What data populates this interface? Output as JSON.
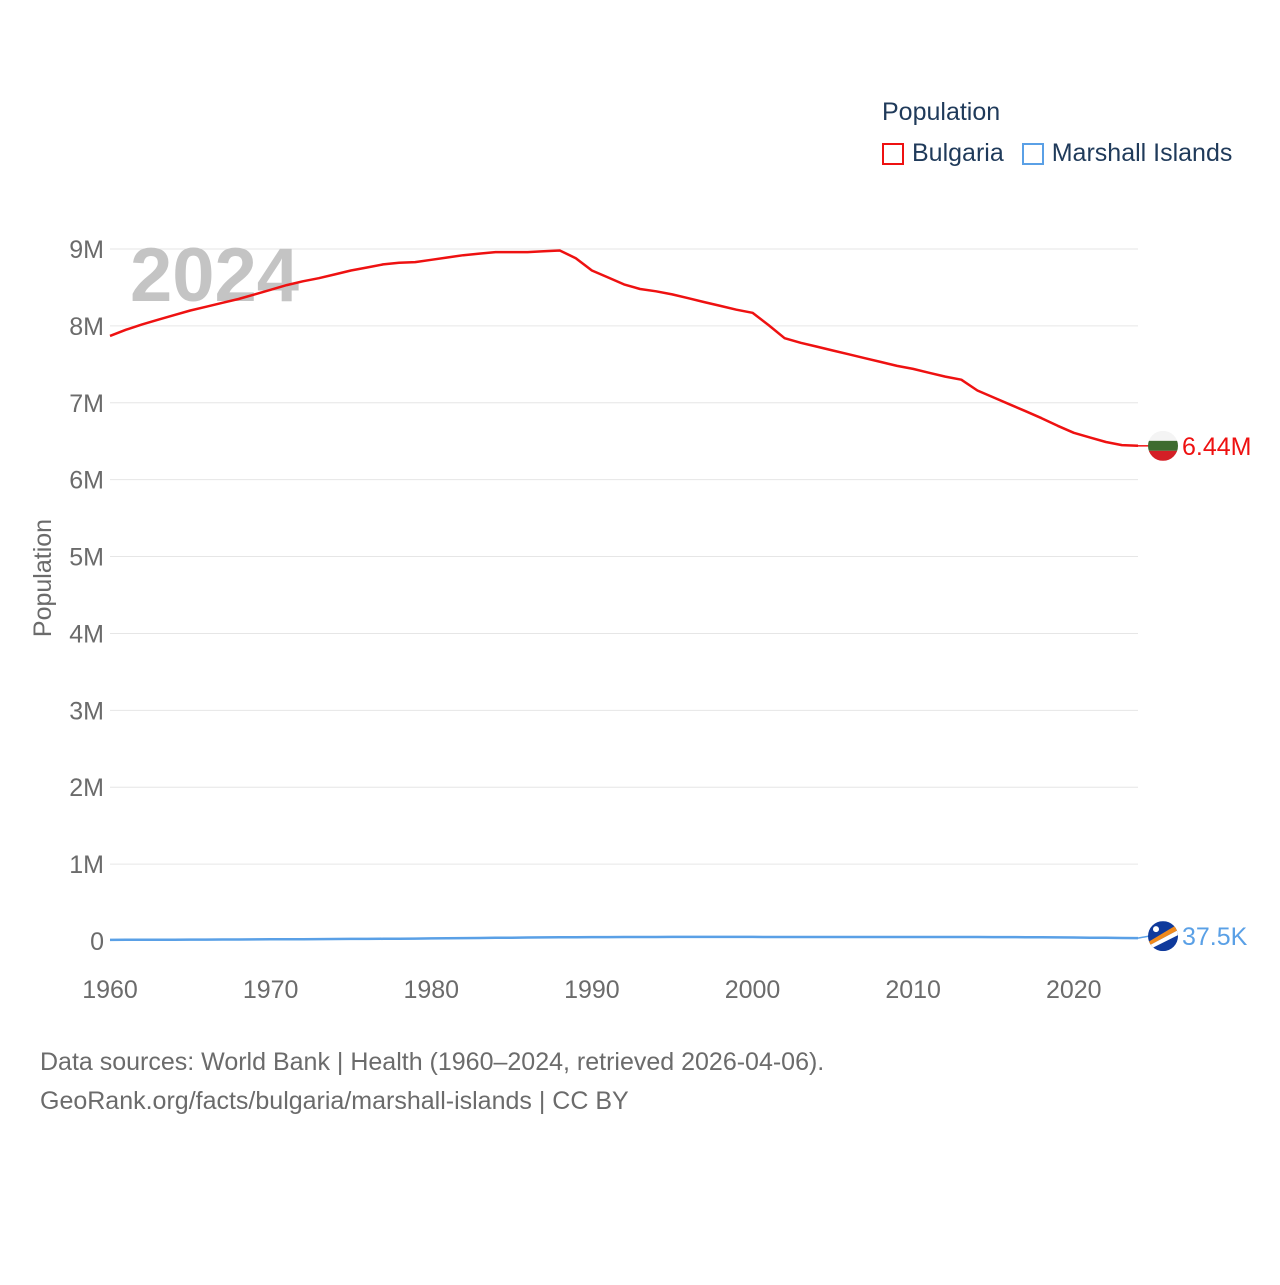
{
  "colors": {
    "bulgaria": "#ee1111",
    "marshall": "#5aa0e6",
    "grid": "#e6e6e6",
    "tick": "#6b6b6b",
    "year_watermark": "#c4c4c4",
    "legend_text": "#1f3a5a"
  },
  "legend": {
    "title": "Population",
    "items": [
      {
        "label": "Bulgaria",
        "color": "#ee1111"
      },
      {
        "label": "Marshall Islands",
        "color": "#5aa0e6"
      }
    ]
  },
  "year_watermark": "2024",
  "end_labels": {
    "bulgaria": "6.44M",
    "marshall": "37.5K"
  },
  "flags": {
    "bulgaria": "bulgaria-flag-icon",
    "marshall": "marshall-islands-flag-icon"
  },
  "footer": {
    "line1": "Data sources: World Bank | Health (1960–2024, retrieved 2026-04-06).",
    "line2": "GeoRank.org/facts/bulgaria/marshall-islands | CC BY"
  },
  "chart_data": {
    "type": "line",
    "title": "",
    "xlabel": "",
    "ylabel": "Population",
    "xlim": [
      1960,
      2024
    ],
    "ylim": [
      0,
      9000000
    ],
    "x_ticks": [
      1960,
      1970,
      1980,
      1990,
      2000,
      2010,
      2020
    ],
    "x_tick_labels": [
      "1960",
      "1970",
      "1980",
      "1990",
      "2000",
      "2010",
      "2020"
    ],
    "y_ticks": [
      0,
      1000000,
      2000000,
      3000000,
      4000000,
      5000000,
      6000000,
      7000000,
      8000000,
      9000000
    ],
    "y_tick_labels": [
      "0",
      "1M",
      "2M",
      "3M",
      "4M",
      "5M",
      "6M",
      "7M",
      "8M",
      "9M"
    ],
    "grid": true,
    "legend_position": "top-right",
    "x": [
      1960,
      1961,
      1962,
      1963,
      1964,
      1965,
      1966,
      1967,
      1968,
      1969,
      1970,
      1971,
      1972,
      1973,
      1974,
      1975,
      1976,
      1977,
      1978,
      1979,
      1980,
      1981,
      1982,
      1983,
      1984,
      1985,
      1986,
      1987,
      1988,
      1989,
      1990,
      1991,
      1992,
      1993,
      1994,
      1995,
      1996,
      1997,
      1998,
      1999,
      2000,
      2001,
      2002,
      2003,
      2004,
      2005,
      2006,
      2007,
      2008,
      2009,
      2010,
      2011,
      2012,
      2013,
      2014,
      2015,
      2016,
      2017,
      2018,
      2019,
      2020,
      2021,
      2022,
      2023,
      2024
    ],
    "series": [
      {
        "name": "Bulgaria",
        "values": [
          7870000,
          7950000,
          8020000,
          8080000,
          8140000,
          8200000,
          8250000,
          8300000,
          8350000,
          8410000,
          8470000,
          8530000,
          8580000,
          8620000,
          8670000,
          8720000,
          8760000,
          8800000,
          8820000,
          8830000,
          8860000,
          8890000,
          8920000,
          8940000,
          8960000,
          8960000,
          8960000,
          8970000,
          8980000,
          8880000,
          8720000,
          8630000,
          8540000,
          8480000,
          8450000,
          8410000,
          8360000,
          8310000,
          8260000,
          8210000,
          8170000,
          8010000,
          7840000,
          7780000,
          7730000,
          7680000,
          7630000,
          7580000,
          7530000,
          7480000,
          7440000,
          7390000,
          7340000,
          7300000,
          7160000,
          7070000,
          6980000,
          6890000,
          6800000,
          6700000,
          6610000,
          6550000,
          6490000,
          6450000,
          6440000
        ]
      },
      {
        "name": "Marshall Islands",
        "values": [
          14800,
          15300,
          15900,
          16500,
          17200,
          17900,
          18600,
          19300,
          20100,
          20900,
          21800,
          22700,
          23600,
          24600,
          25600,
          26700,
          27800,
          29100,
          30300,
          31700,
          33300,
          35100,
          37100,
          39200,
          41300,
          43300,
          45300,
          47000,
          48400,
          49300,
          50200,
          50900,
          51500,
          52000,
          52400,
          52700,
          52800,
          52900,
          52900,
          52800,
          52700,
          52600,
          52500,
          52400,
          52300,
          52200,
          52200,
          52200,
          52200,
          52300,
          52400,
          52500,
          52600,
          52400,
          51900,
          51200,
          50300,
          49300,
          48100,
          46700,
          45000,
          43300,
          41500,
          39500,
          37500
        ]
      }
    ]
  }
}
